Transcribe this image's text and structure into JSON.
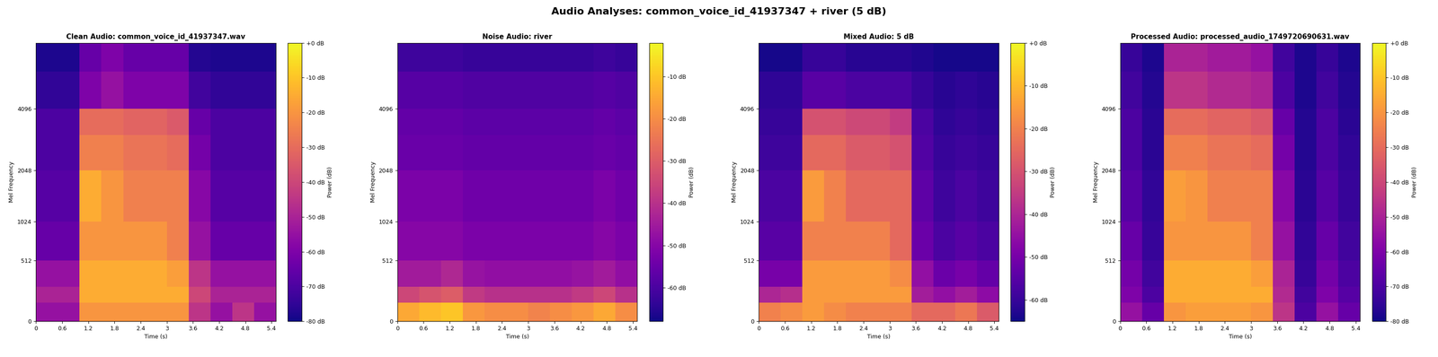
{
  "title": "Audio Analyses: common_voice_id_41937347 + river (5 dB)",
  "chart_data": [
    {
      "type": "heatmap",
      "title": "Clean Audio: common_voice_id_41937347.wav",
      "x_label": "Time (s)",
      "y_label": "Mel Frequency",
      "x_edges": [
        0,
        0.5,
        1.0,
        1.5,
        2.0,
        2.5,
        3.0,
        3.5,
        4.0,
        4.5,
        5.0,
        5.5
      ],
      "y_edges": [
        0,
        128,
        256,
        512,
        1024,
        2048,
        3072,
        4096,
        6000,
        8000
      ],
      "cells": [
        [
          -55,
          -55,
          -20,
          -20,
          -20,
          -20,
          -20,
          -45,
          -55,
          -45,
          -55
        ],
        [
          -50,
          -50,
          -15,
          -15,
          -15,
          -15,
          -15,
          -40,
          -50,
          -50,
          -50
        ],
        [
          -55,
          -55,
          -15,
          -15,
          -15,
          -15,
          -18,
          -45,
          -55,
          -55,
          -55
        ],
        [
          -65,
          -65,
          -20,
          -20,
          -20,
          -20,
          -25,
          -55,
          -65,
          -65,
          -65
        ],
        [
          -68,
          -68,
          -15,
          -20,
          -25,
          -25,
          -25,
          -58,
          -68,
          -68,
          -68
        ],
        [
          -70,
          -70,
          -25,
          -25,
          -28,
          -28,
          -30,
          -62,
          -70,
          -70,
          -70
        ],
        [
          -70,
          -70,
          -30,
          -30,
          -32,
          -32,
          -35,
          -65,
          -70,
          -70,
          -70
        ],
        [
          -75,
          -75,
          -60,
          -55,
          -60,
          -60,
          -60,
          -72,
          -75,
          -75,
          -75
        ],
        [
          -78,
          -78,
          -65,
          -60,
          -65,
          -65,
          -65,
          -77,
          -78,
          -78,
          -78
        ]
      ],
      "xlim": [
        0,
        5.5
      ],
      "ylim": [
        0,
        8000
      ],
      "xticks": [
        0,
        0.6,
        1.2,
        1.8,
        2.4,
        3,
        3.6,
        4.2,
        4.8,
        5.4
      ],
      "yticks": [
        0,
        512,
        1024,
        2048,
        4096
      ],
      "colorbar": {
        "label": "Power (dB)",
        "range": [
          -80,
          0
        ],
        "ticks": [
          {
            "value": 0,
            "label": "+0 dB"
          },
          {
            "value": -10,
            "label": "-10 dB"
          },
          {
            "value": -20,
            "label": "-20 dB"
          },
          {
            "value": -30,
            "label": "-30 dB"
          },
          {
            "value": -40,
            "label": "-40 dB"
          },
          {
            "value": -50,
            "label": "-50 dB"
          },
          {
            "value": -60,
            "label": "-60 dB"
          },
          {
            "value": -70,
            "label": "-70 dB"
          },
          {
            "value": -80,
            "label": "-80 dB"
          }
        ]
      }
    },
    {
      "type": "heatmap",
      "title": "Noise Audio: river",
      "x_label": "Time (s)",
      "y_label": "Mel Frequency",
      "x_edges": [
        0,
        0.5,
        1.0,
        1.5,
        2.0,
        2.5,
        3.0,
        3.5,
        4.0,
        4.5,
        5.0,
        5.5
      ],
      "y_edges": [
        0,
        128,
        256,
        512,
        1024,
        2048,
        3072,
        4096,
        6000,
        8000
      ],
      "cells": [
        [
          -15,
          -12,
          -10,
          -18,
          -20,
          -20,
          -22,
          -20,
          -18,
          -15,
          -20
        ],
        [
          -35,
          -32,
          -30,
          -38,
          -40,
          -40,
          -40,
          -40,
          -38,
          -35,
          -40
        ],
        [
          -45,
          -45,
          -42,
          -47,
          -48,
          -48,
          -48,
          -48,
          -47,
          -45,
          -48
        ],
        [
          -50,
          -50,
          -50,
          -52,
          -52,
          -52,
          -52,
          -52,
          -52,
          -50,
          -52
        ],
        [
          -52,
          -52,
          -52,
          -54,
          -54,
          -54,
          -54,
          -54,
          -54,
          -52,
          -54
        ],
        [
          -55,
          -55,
          -55,
          -56,
          -56,
          -56,
          -56,
          -56,
          -56,
          -55,
          -56
        ],
        [
          -56,
          -56,
          -56,
          -57,
          -57,
          -57,
          -57,
          -57,
          -57,
          -56,
          -57
        ],
        [
          -58,
          -58,
          -58,
          -59,
          -59,
          -59,
          -59,
          -59,
          -59,
          -58,
          -59
        ],
        [
          -62,
          -62,
          -62,
          -63,
          -63,
          -63,
          -63,
          -63,
          -63,
          -62,
          -63
        ]
      ],
      "xlim": [
        0,
        5.5
      ],
      "ylim": [
        0,
        8000
      ],
      "xticks": [
        0,
        0.6,
        1.2,
        1.8,
        2.4,
        3,
        3.6,
        4.2,
        4.8,
        5.4
      ],
      "yticks": [
        0,
        512,
        1024,
        2048,
        4096
      ],
      "colorbar": {
        "label": "Power (dB)",
        "range": [
          -68,
          -2
        ],
        "ticks": [
          {
            "value": -10,
            "label": "-10 dB"
          },
          {
            "value": -20,
            "label": "-20 dB"
          },
          {
            "value": -30,
            "label": "-30 dB"
          },
          {
            "value": -40,
            "label": "-40 dB"
          },
          {
            "value": -50,
            "label": "-50 dB"
          },
          {
            "value": -60,
            "label": "-60 dB"
          }
        ]
      }
    },
    {
      "type": "heatmap",
      "title": "Mixed Audio: 5 dB",
      "x_label": "Time (s)",
      "y_label": "Mel Frequency",
      "x_edges": [
        0,
        0.5,
        1.0,
        1.5,
        2.0,
        2.5,
        3.0,
        3.5,
        4.0,
        4.5,
        5.0,
        5.5
      ],
      "y_edges": [
        0,
        128,
        256,
        512,
        1024,
        2048,
        3072,
        4096,
        6000,
        8000
      ],
      "cells": [
        [
          -20,
          -18,
          -15,
          -18,
          -20,
          -20,
          -20,
          -25,
          -25,
          -22,
          -28
        ],
        [
          -40,
          -38,
          -15,
          -15,
          -15,
          -15,
          -15,
          -42,
          -45,
          -42,
          -46
        ],
        [
          -50,
          -50,
          -15,
          -15,
          -15,
          -15,
          -18,
          -45,
          -52,
          -50,
          -53
        ],
        [
          -55,
          -55,
          -20,
          -20,
          -20,
          -20,
          -25,
          -52,
          -57,
          -55,
          -57
        ],
        [
          -57,
          -57,
          -15,
          -20,
          -25,
          -25,
          -25,
          -54,
          -59,
          -57,
          -59
        ],
        [
          -59,
          -59,
          -25,
          -25,
          -28,
          -28,
          -30,
          -56,
          -60,
          -59,
          -60
        ],
        [
          -60,
          -60,
          -30,
          -30,
          -32,
          -32,
          -35,
          -57,
          -61,
          -60,
          -61
        ],
        [
          -61,
          -61,
          -55,
          -55,
          -57,
          -57,
          -57,
          -60,
          -62,
          -61,
          -62
        ],
        [
          -64,
          -64,
          -60,
          -60,
          -62,
          -62,
          -62,
          -63,
          -64,
          -64,
          -64
        ]
      ],
      "xlim": [
        0,
        5.5
      ],
      "ylim": [
        0,
        8000
      ],
      "xticks": [
        0,
        0.6,
        1.2,
        1.8,
        2.4,
        3,
        3.6,
        4.2,
        4.8,
        5.4
      ],
      "yticks": [
        0,
        512,
        1024,
        2048,
        4096
      ],
      "colorbar": {
        "label": "Power (dB)",
        "range": [
          -65,
          0
        ],
        "ticks": [
          {
            "value": 0,
            "label": "+0 dB"
          },
          {
            "value": -10,
            "label": "-10 dB"
          },
          {
            "value": -20,
            "label": "-20 dB"
          },
          {
            "value": -30,
            "label": "-30 dB"
          },
          {
            "value": -40,
            "label": "-40 dB"
          },
          {
            "value": -50,
            "label": "-50 dB"
          },
          {
            "value": -60,
            "label": "-60 dB"
          }
        ]
      }
    },
    {
      "type": "heatmap",
      "title": "Processed Audio: processed_audio_1749720690631.wav",
      "x_label": "Time (s)",
      "y_label": "Mel Frequency",
      "x_edges": [
        0,
        0.5,
        1.0,
        1.5,
        2.0,
        2.5,
        3.0,
        3.5,
        4.0,
        4.5,
        5.0,
        5.5
      ],
      "y_edges": [
        0,
        128,
        256,
        512,
        1024,
        2048,
        3072,
        4096,
        6000,
        8000
      ],
      "cells": [
        [
          -55,
          -65,
          -20,
          -18,
          -18,
          -18,
          -20,
          -45,
          -70,
          -55,
          -65
        ],
        [
          -60,
          -70,
          -15,
          -15,
          -15,
          -15,
          -15,
          -48,
          -72,
          -60,
          -68
        ],
        [
          -62,
          -72,
          -15,
          -15,
          -15,
          -15,
          -18,
          -50,
          -74,
          -62,
          -70
        ],
        [
          -65,
          -74,
          -20,
          -20,
          -20,
          -20,
          -25,
          -55,
          -75,
          -65,
          -72
        ],
        [
          -68,
          -75,
          -18,
          -20,
          -25,
          -25,
          -25,
          -58,
          -76,
          -68,
          -74
        ],
        [
          -70,
          -76,
          -25,
          -25,
          -28,
          -28,
          -30,
          -62,
          -77,
          -70,
          -75
        ],
        [
          -70,
          -76,
          -30,
          -30,
          -32,
          -32,
          -35,
          -65,
          -77,
          -70,
          -76
        ],
        [
          -72,
          -77,
          -45,
          -45,
          -48,
          -48,
          -50,
          -70,
          -78,
          -72,
          -77
        ],
        [
          -74,
          -78,
          -50,
          -50,
          -52,
          -52,
          -55,
          -72,
          -78,
          -74,
          -78
        ]
      ],
      "xlim": [
        0,
        5.5
      ],
      "ylim": [
        0,
        8000
      ],
      "xticks": [
        0,
        0.6,
        1.2,
        1.8,
        2.4,
        3,
        3.6,
        4.2,
        4.8,
        5.4
      ],
      "yticks": [
        0,
        512,
        1024,
        2048,
        4096
      ],
      "colorbar": {
        "label": "Power (dB)",
        "range": [
          -80,
          0
        ],
        "ticks": [
          {
            "value": 0,
            "label": "+0 dB"
          },
          {
            "value": -10,
            "label": "-10 dB"
          },
          {
            "value": -20,
            "label": "-20 dB"
          },
          {
            "value": -30,
            "label": "-30 dB"
          },
          {
            "value": -40,
            "label": "-40 dB"
          },
          {
            "value": -50,
            "label": "-50 dB"
          },
          {
            "value": -60,
            "label": "-60 dB"
          },
          {
            "value": -70,
            "label": "-70 dB"
          },
          {
            "value": -80,
            "label": "-80 dB"
          }
        ]
      }
    }
  ]
}
